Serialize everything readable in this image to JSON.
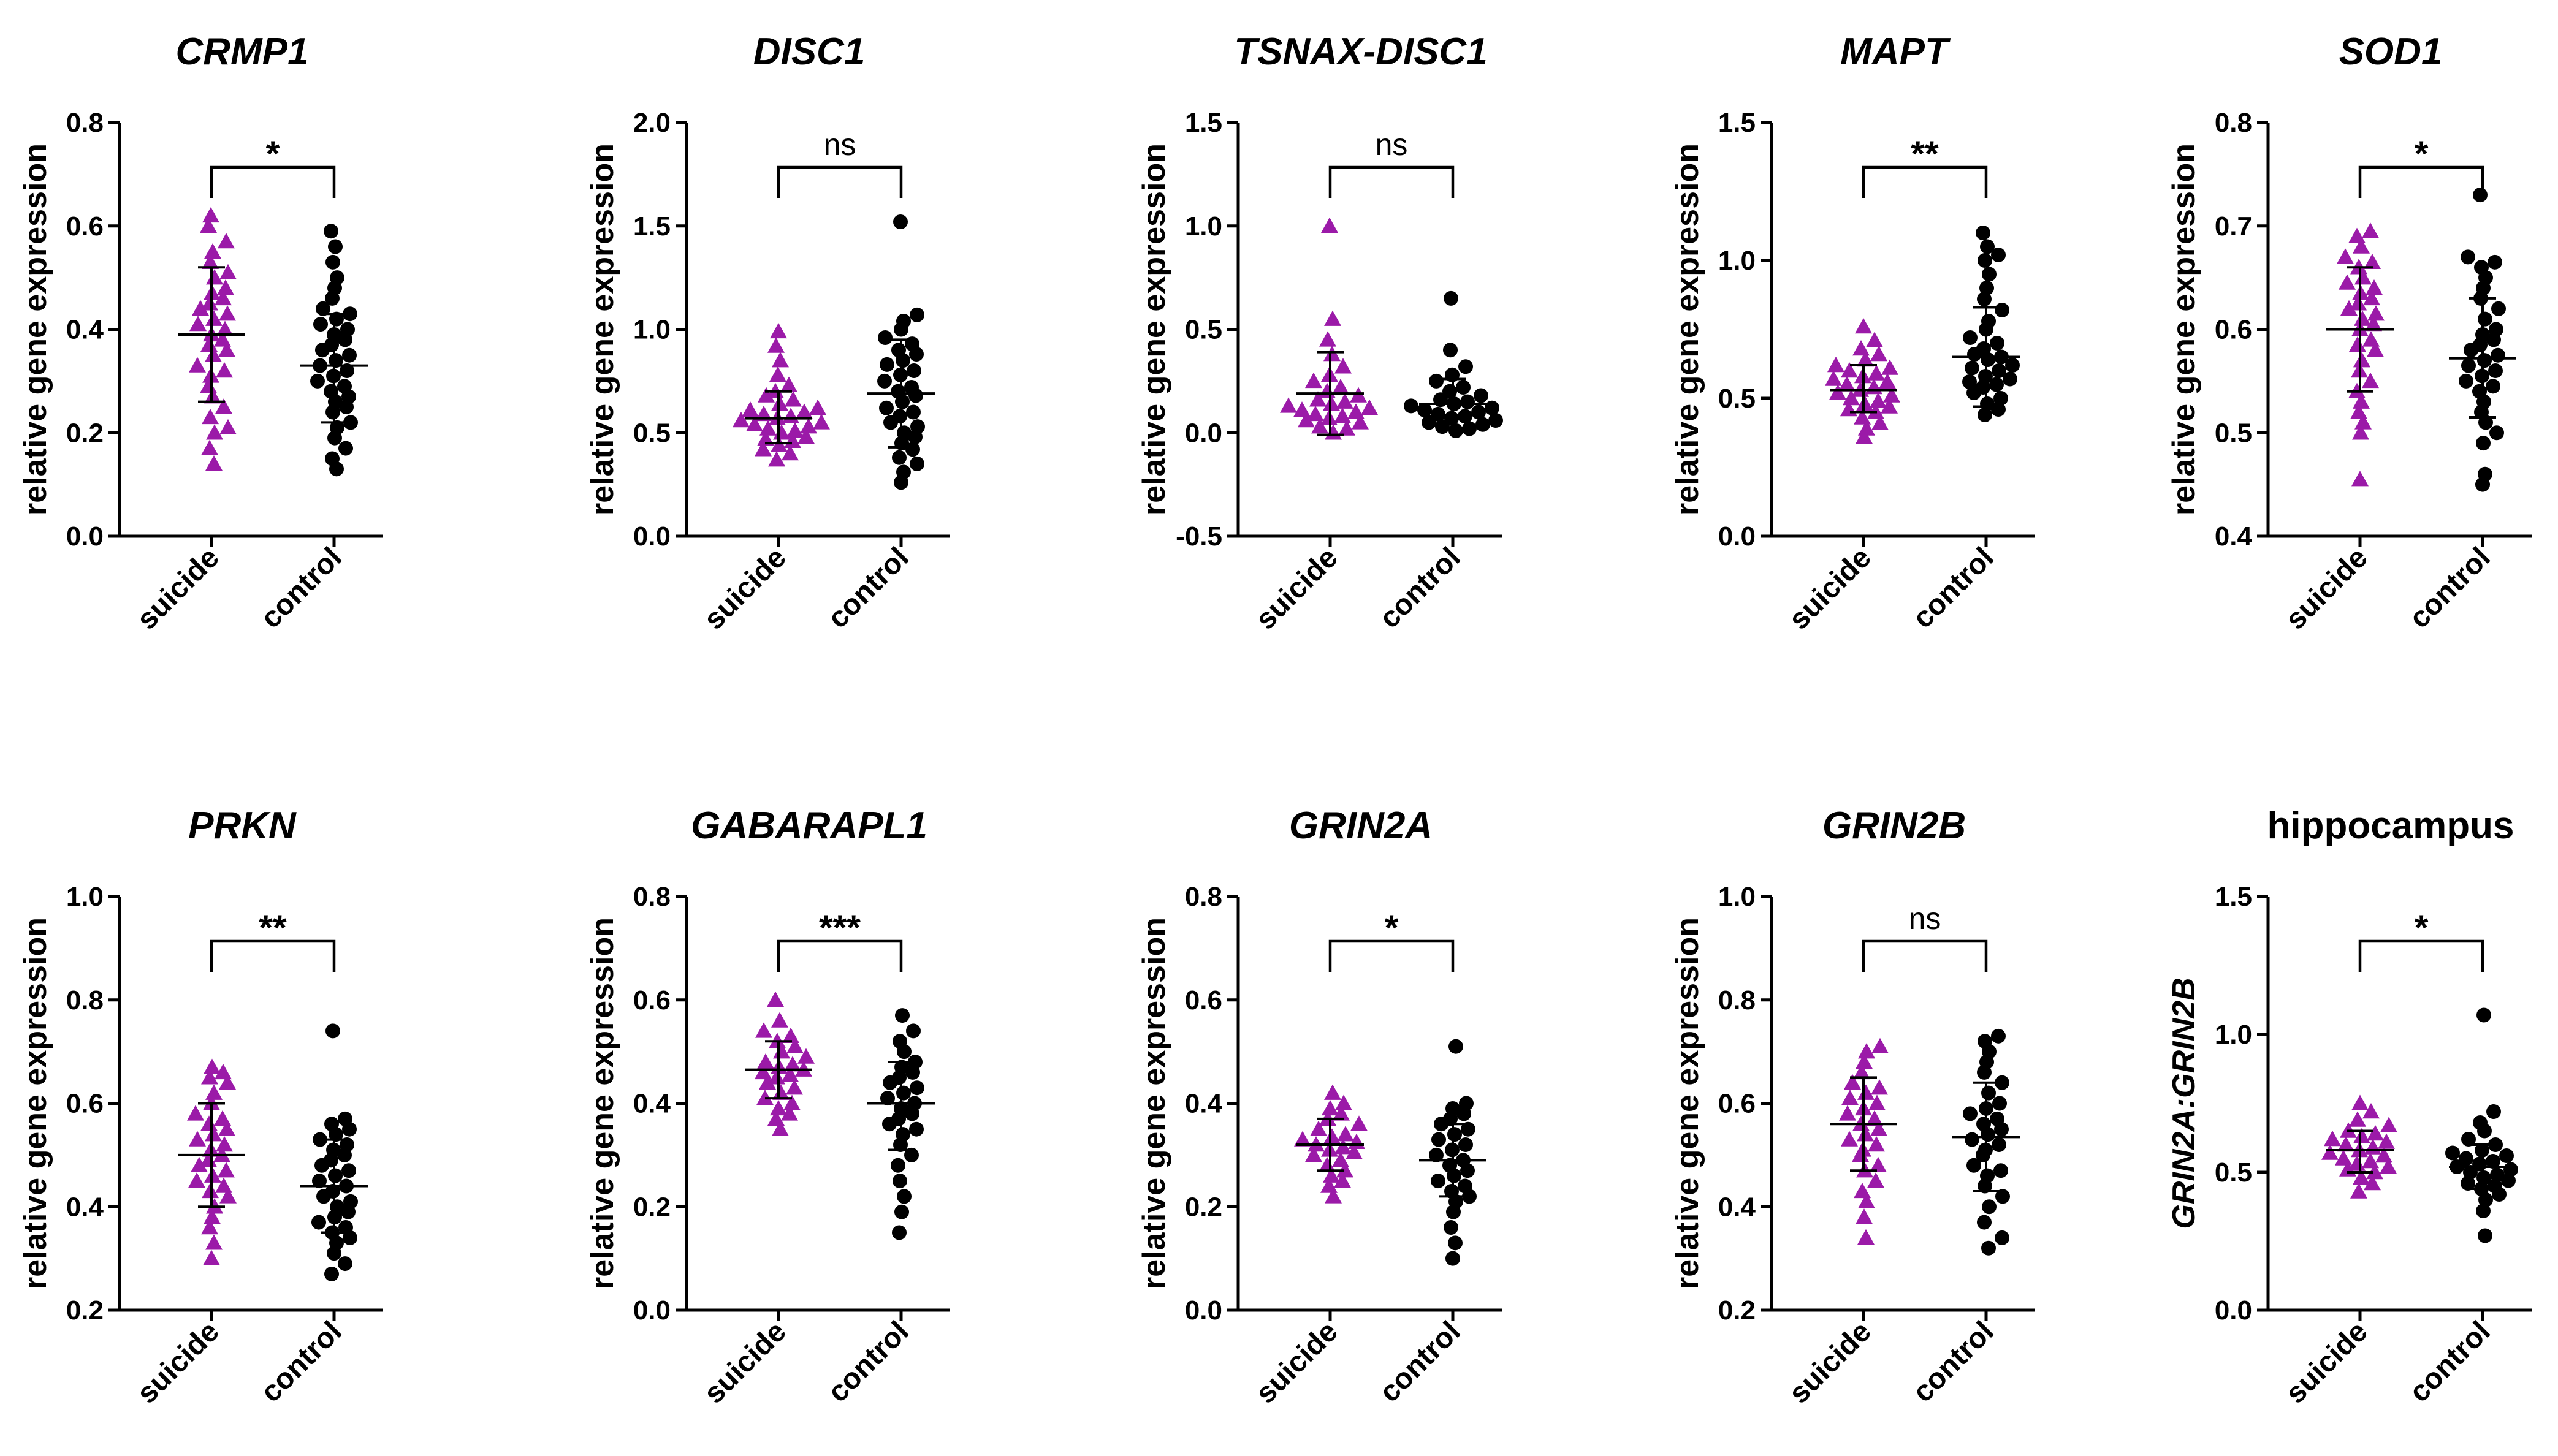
{
  "figure": {
    "colors": {
      "suicide": "#9b1aa8",
      "control": "#000000",
      "axis": "#000000"
    },
    "marker_shapes": {
      "suicide": "triangle",
      "control": "circle"
    }
  },
  "chart_data": [
    {
      "type": "scatter",
      "title": "CRMP1",
      "ylabel": "relative gene expression",
      "ylim": [
        0.0,
        0.8
      ],
      "yticks": [
        "0.0",
        "0.2",
        "0.4",
        "0.6",
        "0.8"
      ],
      "categories": [
        "suicide",
        "control"
      ],
      "significance": "*",
      "series": [
        {
          "name": "suicide",
          "mean": 0.39,
          "sd_low": 0.26,
          "sd_high": 0.52,
          "values": [
            0.14,
            0.17,
            0.2,
            0.21,
            0.23,
            0.25,
            0.27,
            0.29,
            0.31,
            0.32,
            0.33,
            0.35,
            0.36,
            0.37,
            0.38,
            0.39,
            0.4,
            0.41,
            0.42,
            0.43,
            0.44,
            0.45,
            0.46,
            0.47,
            0.48,
            0.5,
            0.51,
            0.53,
            0.55,
            0.57,
            0.6,
            0.62
          ]
        },
        {
          "name": "control",
          "mean": 0.33,
          "sd_low": 0.22,
          "sd_high": 0.43,
          "values": [
            0.13,
            0.15,
            0.17,
            0.19,
            0.21,
            0.22,
            0.24,
            0.25,
            0.26,
            0.27,
            0.28,
            0.29,
            0.3,
            0.31,
            0.32,
            0.33,
            0.34,
            0.35,
            0.36,
            0.37,
            0.38,
            0.39,
            0.4,
            0.41,
            0.42,
            0.43,
            0.44,
            0.46,
            0.48,
            0.5,
            0.53,
            0.56,
            0.59
          ]
        }
      ]
    },
    {
      "type": "scatter",
      "title": "DISC1",
      "ylabel": "relative gene expression",
      "ylim": [
        0.0,
        2.0
      ],
      "yticks": [
        "0.0",
        "0.5",
        "1.0",
        "1.5",
        "2.0"
      ],
      "categories": [
        "suicide",
        "control"
      ],
      "significance": "ns",
      "series": [
        {
          "name": "suicide",
          "mean": 0.57,
          "sd_low": 0.45,
          "sd_high": 0.7,
          "values": [
            0.37,
            0.4,
            0.42,
            0.44,
            0.46,
            0.47,
            0.48,
            0.5,
            0.51,
            0.52,
            0.53,
            0.54,
            0.55,
            0.56,
            0.57,
            0.58,
            0.59,
            0.6,
            0.61,
            0.62,
            0.64,
            0.66,
            0.68,
            0.7,
            0.73,
            0.78,
            0.85,
            0.92,
            0.99
          ]
        },
        {
          "name": "control",
          "mean": 0.69,
          "sd_low": 0.43,
          "sd_high": 0.95,
          "values": [
            0.26,
            0.31,
            0.35,
            0.38,
            0.42,
            0.45,
            0.48,
            0.5,
            0.53,
            0.55,
            0.58,
            0.6,
            0.62,
            0.65,
            0.68,
            0.7,
            0.72,
            0.75,
            0.78,
            0.8,
            0.83,
            0.85,
            0.88,
            0.9,
            0.93,
            0.96,
            1.0,
            1.04,
            1.07,
            1.52
          ]
        }
      ]
    },
    {
      "type": "scatter",
      "title": "TSNAX-DISC1",
      "ylabel": "relative gene expression",
      "ylim": [
        -0.5,
        1.5
      ],
      "yticks": [
        "-0.5",
        "0.0",
        "0.5",
        "1.0",
        "1.5"
      ],
      "categories": [
        "suicide",
        "control"
      ],
      "significance": "ns",
      "series": [
        {
          "name": "suicide",
          "mean": 0.19,
          "sd_low": -0.01,
          "sd_high": 0.39,
          "values": [
            0.0,
            0.02,
            0.03,
            0.05,
            0.06,
            0.07,
            0.08,
            0.09,
            0.1,
            0.11,
            0.12,
            0.13,
            0.14,
            0.15,
            0.16,
            0.18,
            0.2,
            0.22,
            0.25,
            0.28,
            0.32,
            0.38,
            0.45,
            0.55,
            1.0
          ]
        },
        {
          "name": "control",
          "mean": 0.14,
          "sd_low": 0.02,
          "sd_high": 0.26,
          "values": [
            0.01,
            0.02,
            0.03,
            0.04,
            0.05,
            0.06,
            0.07,
            0.08,
            0.09,
            0.1,
            0.11,
            0.12,
            0.13,
            0.14,
            0.15,
            0.16,
            0.18,
            0.2,
            0.22,
            0.25,
            0.28,
            0.32,
            0.4,
            0.65
          ]
        }
      ]
    },
    {
      "type": "scatter",
      "title": "MAPT",
      "ylabel": "relative gene expression",
      "ylim": [
        0.0,
        1.5
      ],
      "yticks": [
        "0.0",
        "0.5",
        "1.0",
        "1.5"
      ],
      "categories": [
        "suicide",
        "control"
      ],
      "significance": "**",
      "series": [
        {
          "name": "suicide",
          "mean": 0.53,
          "sd_low": 0.45,
          "sd_high": 0.62,
          "values": [
            0.36,
            0.39,
            0.41,
            0.43,
            0.45,
            0.46,
            0.47,
            0.48,
            0.49,
            0.5,
            0.51,
            0.52,
            0.53,
            0.54,
            0.55,
            0.56,
            0.57,
            0.58,
            0.59,
            0.6,
            0.61,
            0.62,
            0.64,
            0.66,
            0.68,
            0.71,
            0.76
          ]
        },
        {
          "name": "control",
          "mean": 0.65,
          "sd_low": 0.47,
          "sd_high": 0.83,
          "values": [
            0.44,
            0.46,
            0.48,
            0.5,
            0.52,
            0.54,
            0.55,
            0.56,
            0.57,
            0.58,
            0.6,
            0.61,
            0.62,
            0.64,
            0.65,
            0.66,
            0.68,
            0.7,
            0.72,
            0.75,
            0.78,
            0.82,
            0.86,
            0.9,
            0.95,
            1.0,
            1.02,
            1.05,
            1.1
          ]
        }
      ]
    },
    {
      "type": "scatter",
      "title": "SOD1",
      "ylabel": "relative gene expression",
      "ylim": [
        0.4,
        0.8
      ],
      "yticks": [
        "0.4",
        "0.5",
        "0.6",
        "0.7",
        "0.8"
      ],
      "categories": [
        "suicide",
        "control"
      ],
      "significance": "*",
      "series": [
        {
          "name": "suicide",
          "mean": 0.6,
          "sd_low": 0.54,
          "sd_high": 0.66,
          "values": [
            0.455,
            0.5,
            0.51,
            0.52,
            0.53,
            0.54,
            0.55,
            0.56,
            0.57,
            0.58,
            0.585,
            0.59,
            0.6,
            0.605,
            0.61,
            0.615,
            0.62,
            0.625,
            0.63,
            0.635,
            0.64,
            0.645,
            0.65,
            0.66,
            0.665,
            0.67,
            0.68,
            0.69,
            0.695
          ]
        },
        {
          "name": "control",
          "mean": 0.572,
          "sd_low": 0.515,
          "sd_high": 0.63,
          "values": [
            0.45,
            0.46,
            0.49,
            0.5,
            0.51,
            0.52,
            0.53,
            0.54,
            0.545,
            0.55,
            0.555,
            0.56,
            0.565,
            0.57,
            0.575,
            0.58,
            0.585,
            0.59,
            0.595,
            0.6,
            0.61,
            0.62,
            0.63,
            0.64,
            0.65,
            0.66,
            0.665,
            0.67,
            0.73
          ]
        }
      ]
    },
    {
      "type": "scatter",
      "title": "PRKN",
      "ylabel": "relative gene expression",
      "ylim": [
        0.2,
        1.0
      ],
      "yticks": [
        "0.2",
        "0.4",
        "0.6",
        "0.8",
        "1.0"
      ],
      "categories": [
        "suicide",
        "control"
      ],
      "significance": "**",
      "series": [
        {
          "name": "suicide",
          "mean": 0.5,
          "sd_low": 0.4,
          "sd_high": 0.6,
          "values": [
            0.3,
            0.33,
            0.36,
            0.38,
            0.4,
            0.42,
            0.43,
            0.44,
            0.45,
            0.46,
            0.47,
            0.48,
            0.49,
            0.5,
            0.51,
            0.52,
            0.53,
            0.54,
            0.55,
            0.56,
            0.57,
            0.58,
            0.6,
            0.62,
            0.64,
            0.65,
            0.66,
            0.67
          ]
        },
        {
          "name": "control",
          "mean": 0.44,
          "sd_low": 0.35,
          "sd_high": 0.53,
          "values": [
            0.27,
            0.29,
            0.31,
            0.33,
            0.34,
            0.35,
            0.36,
            0.37,
            0.38,
            0.39,
            0.4,
            0.41,
            0.42,
            0.43,
            0.44,
            0.45,
            0.46,
            0.47,
            0.48,
            0.49,
            0.5,
            0.51,
            0.52,
            0.53,
            0.54,
            0.55,
            0.56,
            0.57,
            0.74
          ]
        }
      ]
    },
    {
      "type": "scatter",
      "title": "GABARAPL1",
      "ylabel": "relative gene expression",
      "ylim": [
        0.0,
        0.8
      ],
      "yticks": [
        "0.0",
        "0.2",
        "0.4",
        "0.6",
        "0.8"
      ],
      "categories": [
        "suicide",
        "control"
      ],
      "significance": "***",
      "series": [
        {
          "name": "suicide",
          "mean": 0.465,
          "sd_low": 0.41,
          "sd_high": 0.52,
          "values": [
            0.35,
            0.37,
            0.38,
            0.39,
            0.4,
            0.41,
            0.42,
            0.43,
            0.44,
            0.45,
            0.455,
            0.46,
            0.465,
            0.47,
            0.475,
            0.48,
            0.49,
            0.5,
            0.51,
            0.52,
            0.53,
            0.54,
            0.56,
            0.6
          ]
        },
        {
          "name": "control",
          "mean": 0.4,
          "sd_low": 0.31,
          "sd_high": 0.48,
          "values": [
            0.15,
            0.19,
            0.22,
            0.25,
            0.28,
            0.3,
            0.32,
            0.34,
            0.35,
            0.36,
            0.37,
            0.38,
            0.39,
            0.4,
            0.41,
            0.42,
            0.43,
            0.44,
            0.45,
            0.46,
            0.47,
            0.48,
            0.5,
            0.52,
            0.54,
            0.57
          ]
        }
      ]
    },
    {
      "type": "scatter",
      "title": "GRIN2A",
      "ylabel": "relative gene expression",
      "ylim": [
        0.0,
        0.8
      ],
      "yticks": [
        "0.0",
        "0.2",
        "0.4",
        "0.6",
        "0.8"
      ],
      "categories": [
        "suicide",
        "control"
      ],
      "significance": "*",
      "series": [
        {
          "name": "suicide",
          "mean": 0.32,
          "sd_low": 0.27,
          "sd_high": 0.37,
          "values": [
            0.22,
            0.24,
            0.25,
            0.26,
            0.27,
            0.28,
            0.29,
            0.3,
            0.305,
            0.31,
            0.315,
            0.32,
            0.325,
            0.33,
            0.335,
            0.34,
            0.35,
            0.36,
            0.37,
            0.38,
            0.39,
            0.4,
            0.42
          ]
        },
        {
          "name": "control",
          "mean": 0.29,
          "sd_low": 0.22,
          "sd_high": 0.36,
          "values": [
            0.1,
            0.13,
            0.16,
            0.19,
            0.21,
            0.22,
            0.23,
            0.24,
            0.25,
            0.26,
            0.27,
            0.28,
            0.29,
            0.3,
            0.31,
            0.32,
            0.33,
            0.34,
            0.35,
            0.36,
            0.37,
            0.38,
            0.39,
            0.4,
            0.51
          ]
        }
      ]
    },
    {
      "type": "scatter",
      "title": "GRIN2B",
      "ylabel": "relative gene expression",
      "ylim": [
        0.2,
        1.0
      ],
      "yticks": [
        "0.2",
        "0.4",
        "0.6",
        "0.8",
        "1.0"
      ],
      "categories": [
        "suicide",
        "control"
      ],
      "significance": "ns",
      "series": [
        {
          "name": "suicide",
          "mean": 0.56,
          "sd_low": 0.47,
          "sd_high": 0.65,
          "values": [
            0.34,
            0.38,
            0.41,
            0.43,
            0.45,
            0.47,
            0.48,
            0.5,
            0.51,
            0.52,
            0.53,
            0.54,
            0.55,
            0.56,
            0.57,
            0.58,
            0.59,
            0.6,
            0.61,
            0.62,
            0.63,
            0.64,
            0.66,
            0.68,
            0.7,
            0.71
          ]
        },
        {
          "name": "control",
          "mean": 0.535,
          "sd_low": 0.43,
          "sd_high": 0.64,
          "values": [
            0.32,
            0.34,
            0.37,
            0.4,
            0.42,
            0.44,
            0.46,
            0.47,
            0.48,
            0.5,
            0.51,
            0.52,
            0.53,
            0.54,
            0.55,
            0.56,
            0.57,
            0.58,
            0.59,
            0.6,
            0.62,
            0.64,
            0.66,
            0.68,
            0.7,
            0.72,
            0.73
          ]
        }
      ]
    },
    {
      "type": "scatter",
      "title": "hippocampus",
      "ylabel": "GRIN2A:GRIN2B",
      "ylim": [
        0.0,
        1.5
      ],
      "yticks": [
        "0.0",
        "0.5",
        "1.0",
        "1.5"
      ],
      "categories": [
        "suicide",
        "control"
      ],
      "significance": "*",
      "series": [
        {
          "name": "suicide",
          "mean": 0.58,
          "sd_low": 0.5,
          "sd_high": 0.65,
          "values": [
            0.43,
            0.46,
            0.48,
            0.5,
            0.51,
            0.52,
            0.53,
            0.54,
            0.55,
            0.56,
            0.57,
            0.58,
            0.59,
            0.6,
            0.61,
            0.62,
            0.63,
            0.64,
            0.65,
            0.67,
            0.69,
            0.72,
            0.75
          ]
        },
        {
          "name": "control",
          "mean": 0.52,
          "sd_low": 0.44,
          "sd_high": 0.6,
          "values": [
            0.27,
            0.36,
            0.4,
            0.42,
            0.44,
            0.45,
            0.46,
            0.47,
            0.48,
            0.49,
            0.5,
            0.51,
            0.52,
            0.53,
            0.54,
            0.55,
            0.56,
            0.57,
            0.58,
            0.6,
            0.62,
            0.65,
            0.68,
            0.72,
            1.07
          ]
        }
      ]
    }
  ]
}
